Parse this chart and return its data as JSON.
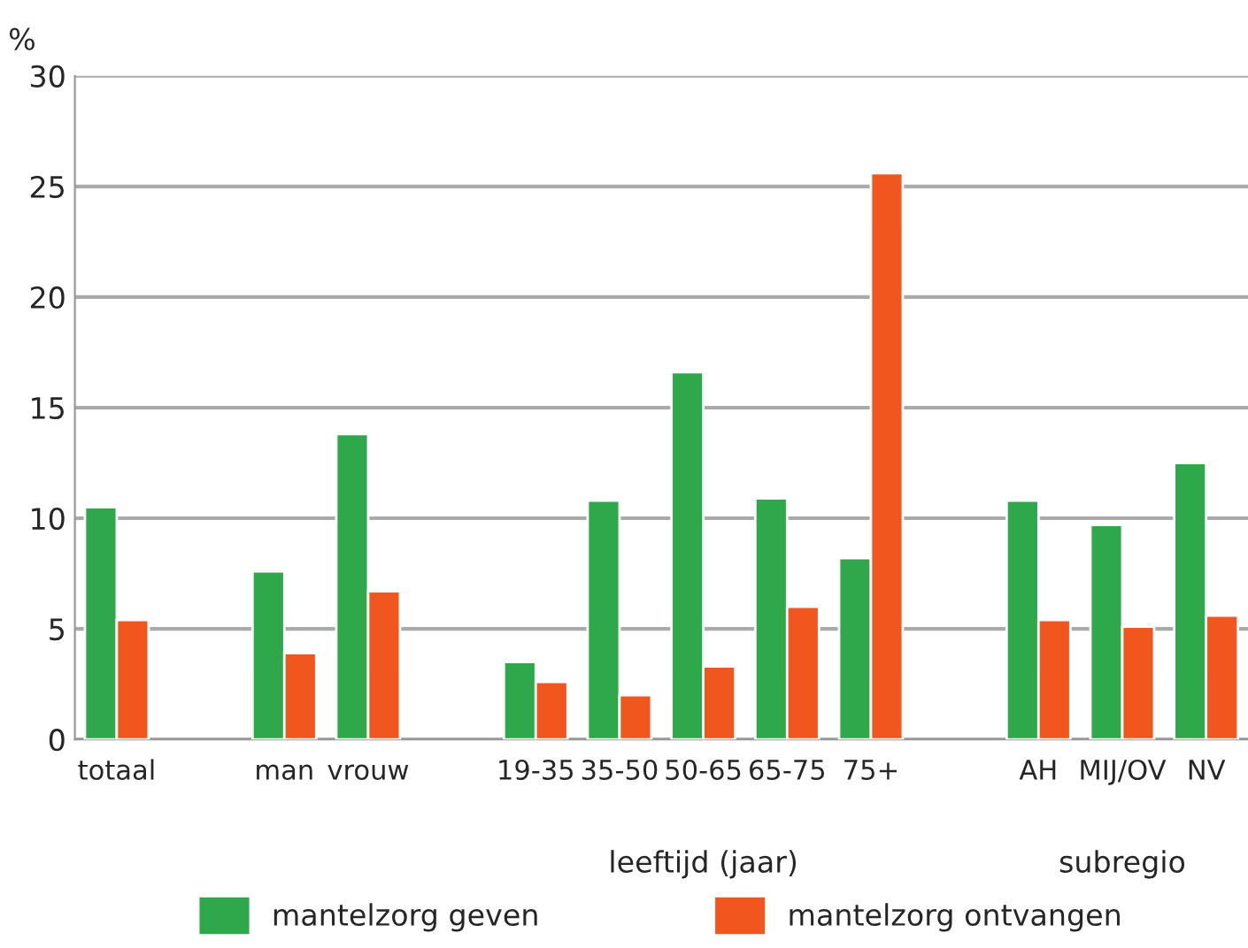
{
  "chart_data": {
    "type": "bar",
    "ylabel": "%",
    "categories": [
      "totaal",
      null,
      "man",
      "vrouw",
      null,
      "19-35",
      "35-50",
      "50-65",
      "65-75",
      "75+",
      null,
      "AH",
      "MIJ/OV",
      "NV"
    ],
    "series": [
      {
        "name": "mantelzorg geven",
        "color": "#2ea84a",
        "values": [
          10.5,
          null,
          7.6,
          13.8,
          null,
          3.5,
          10.8,
          16.6,
          10.9,
          8.2,
          null,
          10.8,
          9.7,
          12.5
        ]
      },
      {
        "name": "mantelzorg ontvangen",
        "color": "#f0561d",
        "values": [
          5.4,
          null,
          3.9,
          6.7,
          null,
          2.6,
          2.0,
          3.3,
          6.0,
          25.6,
          null,
          5.4,
          5.1,
          5.6
        ]
      }
    ],
    "annotations": [
      "leeftijd (jaar)",
      "subregio"
    ],
    "ylim": [
      0,
      30
    ],
    "yticks": [
      0,
      5,
      10,
      15,
      20,
      25,
      30
    ],
    "grid": "y",
    "legend": "bottom"
  }
}
